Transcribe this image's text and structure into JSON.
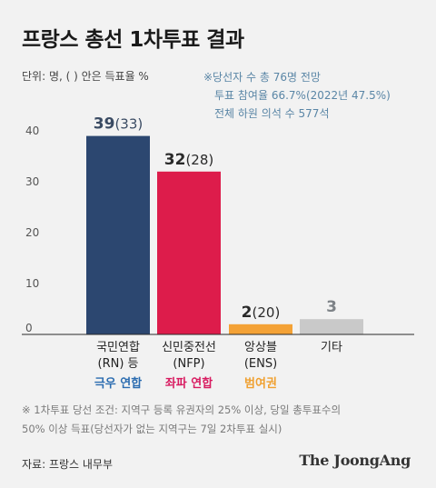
{
  "title": "프랑스 총선 1차투표 결과",
  "unit_note": "단위: 명, ( ) 안은 득표율 %",
  "notes": [
    "※당선자 수 총 76명 전망",
    "투표 참여율 66.7%(2022년 47.5%)",
    "전체 하원 의석 수 577석"
  ],
  "footnote": [
    "※ 1차투표 당선 조건: 지역구 등록 유권자의 25% 이상, 당일 총투표수의",
    "50% 이상 득표(당선자가 없는 지역구는 7일 2차투표 실시)"
  ],
  "source": "자료: 프랑스 내무부",
  "brand": "The JoongAng",
  "chart_data": {
    "type": "bar",
    "ylim": [
      0,
      40
    ],
    "yticks": [
      0,
      10,
      20,
      30,
      40
    ],
    "grid": false,
    "categories": [
      {
        "name_lines": [
          "국민연합",
          "(RN) 등"
        ],
        "group": "극우 연합",
        "group_color": "#2b6cb0"
      },
      {
        "name_lines": [
          "신민중전선",
          "(NFP)"
        ],
        "group": "좌파 연합",
        "group_color": "#d81b60"
      },
      {
        "name_lines": [
          "앙상블",
          "(ENS)"
        ],
        "group": "범여권",
        "group_color": "#f0a030"
      },
      {
        "name_lines": [
          "기타"
        ],
        "group": "",
        "group_color": "#888888"
      }
    ],
    "values": [
      39,
      32,
      2,
      3
    ],
    "vote_share": [
      "33",
      "28",
      "20",
      ""
    ],
    "bar_colors": [
      "#2c4770",
      "#dd1c4b",
      "#f4a236",
      "#c9c9c9"
    ],
    "value_label_colors": [
      "#3a4b63",
      "#2a2a2a",
      "#2a2a2a",
      "#7d8287"
    ]
  }
}
